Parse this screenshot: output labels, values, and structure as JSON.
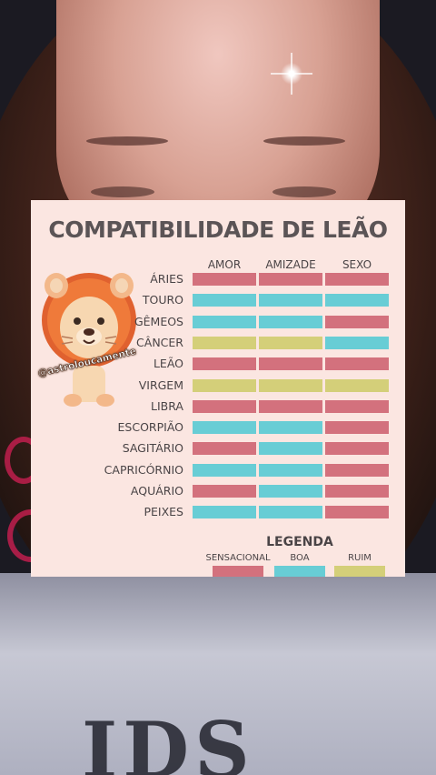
{
  "card": {
    "title": "COMPATIBILIDADE DE LEÃO",
    "watermark": "@astroloucamente",
    "columns": [
      "AMOR",
      "AMIZADE",
      "SEXO"
    ],
    "colors": {
      "sensacional": "#d3717d",
      "boa": "#68cdd5",
      "ruim": "#d4cf79"
    },
    "rows": [
      {
        "sign": "ÁRIES",
        "ratings": [
          "sensacional",
          "sensacional",
          "sensacional"
        ]
      },
      {
        "sign": "TOURO",
        "ratings": [
          "boa",
          "boa",
          "boa"
        ]
      },
      {
        "sign": "GÊMEOS",
        "ratings": [
          "boa",
          "boa",
          "sensacional"
        ]
      },
      {
        "sign": "CÂNCER",
        "ratings": [
          "ruim",
          "ruim",
          "boa"
        ]
      },
      {
        "sign": "LEÃO",
        "ratings": [
          "sensacional",
          "sensacional",
          "sensacional"
        ]
      },
      {
        "sign": "VIRGEM",
        "ratings": [
          "ruim",
          "ruim",
          "ruim"
        ]
      },
      {
        "sign": "LIBRA",
        "ratings": [
          "sensacional",
          "sensacional",
          "sensacional"
        ]
      },
      {
        "sign": "ESCORPIÃO",
        "ratings": [
          "boa",
          "boa",
          "sensacional"
        ]
      },
      {
        "sign": "SAGITÁRIO",
        "ratings": [
          "sensacional",
          "boa",
          "sensacional"
        ]
      },
      {
        "sign": "CAPRICÓRNIO",
        "ratings": [
          "boa",
          "boa",
          "sensacional"
        ]
      },
      {
        "sign": "AQUÁRIO",
        "ratings": [
          "sensacional",
          "boa",
          "sensacional"
        ]
      },
      {
        "sign": "PEIXES",
        "ratings": [
          "boa",
          "boa",
          "sensacional"
        ]
      }
    ],
    "legend": {
      "title": "LEGENDA",
      "items": [
        {
          "label": "SENSACIONAL",
          "key": "sensacional"
        },
        {
          "label": "BOA",
          "key": "boa"
        },
        {
          "label": "RUIM",
          "key": "ruim"
        }
      ]
    }
  },
  "icons": {
    "mascot": "lion-icon"
  }
}
